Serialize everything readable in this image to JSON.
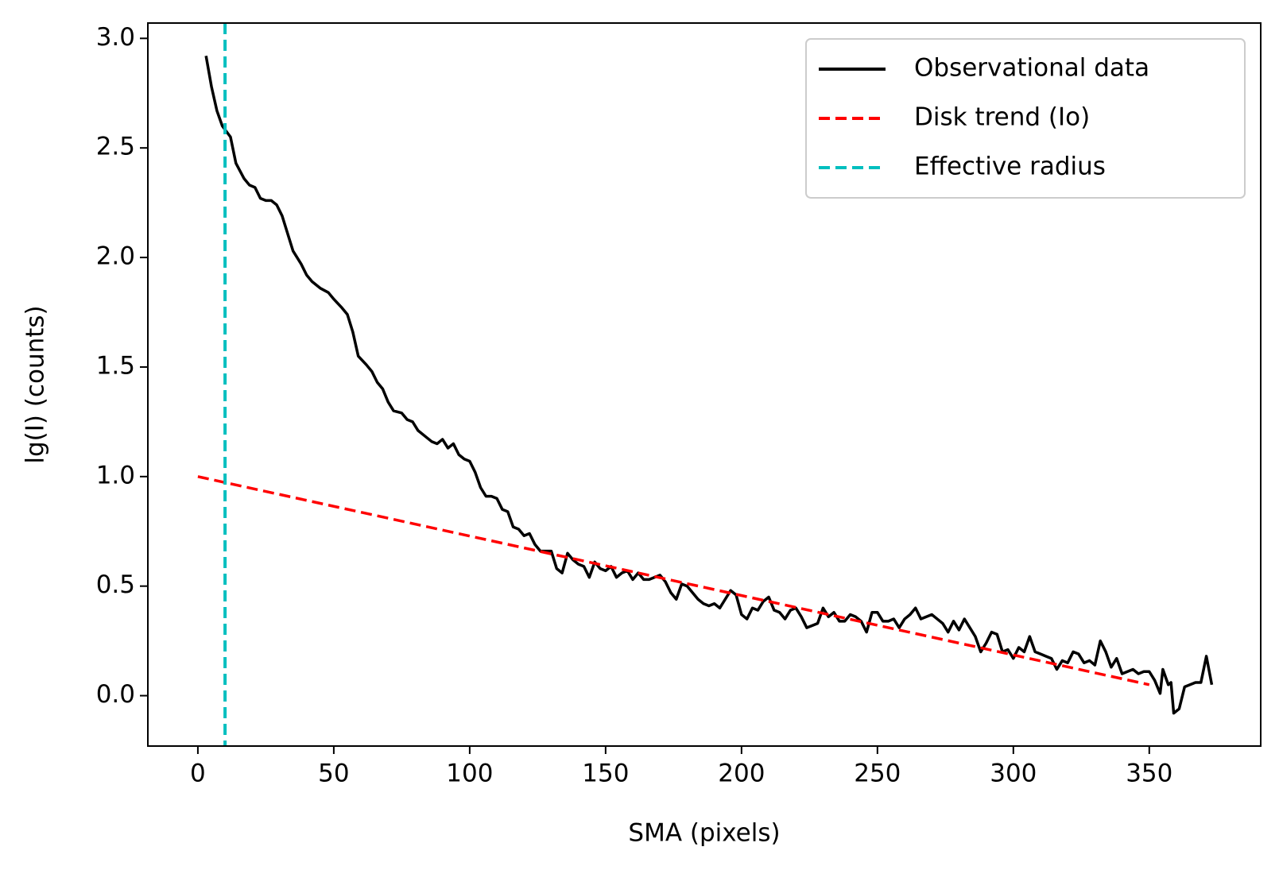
{
  "chart_data": {
    "type": "line",
    "xlabel": "SMA (pixels)",
    "ylabel": "lg(I) (counts)",
    "xlim": [
      -18.4,
      391
    ],
    "ylim": [
      -0.23,
      3.07
    ],
    "xticks": [
      0,
      50,
      100,
      150,
      200,
      250,
      300,
      350
    ],
    "yticks": [
      {
        "value": 0,
        "label": "0.0"
      },
      {
        "value": 0.5,
        "label": "0.5"
      },
      {
        "value": 1,
        "label": "1.0"
      },
      {
        "value": 1.5,
        "label": "1.5"
      },
      {
        "value": 2,
        "label": "2.0"
      },
      {
        "value": 2.5,
        "label": "2.5"
      },
      {
        "value": 3,
        "label": "3.0"
      }
    ],
    "legend": "upper right",
    "series": [
      {
        "name": "Observational data",
        "color": "#000000",
        "style": "solid",
        "x": [
          3,
          5,
          7,
          9,
          12,
          14,
          17,
          19,
          21,
          23,
          25,
          27,
          29,
          31,
          33,
          35,
          38,
          40,
          42,
          45,
          48,
          50,
          53,
          55,
          57,
          59,
          62,
          64,
          66,
          68,
          70,
          72,
          75,
          77,
          79,
          81,
          84,
          86,
          88,
          90,
          92,
          94,
          96,
          98,
          100,
          102,
          104,
          106,
          108,
          110,
          112,
          114,
          116,
          118,
          120,
          122,
          124,
          126,
          128,
          130,
          132,
          134,
          136,
          138,
          140,
          142,
          144,
          146,
          148,
          150,
          152,
          154,
          156,
          158,
          160,
          162,
          164,
          166,
          168,
          170,
          172,
          174,
          176,
          178,
          180,
          182,
          184,
          186,
          188,
          190,
          192,
          194,
          196,
          198,
          200,
          202,
          204,
          206,
          208,
          210,
          212,
          214,
          216,
          218,
          220,
          222,
          224,
          226,
          228,
          230,
          232,
          234,
          236,
          238,
          240,
          242,
          244,
          246,
          248,
          250,
          252,
          254,
          256,
          258,
          260,
          262,
          264,
          266,
          268,
          270,
          272,
          274,
          276,
          278,
          280,
          282,
          284,
          286,
          288,
          290,
          292,
          294,
          296,
          298,
          300,
          302,
          304,
          306,
          308,
          310,
          312,
          314,
          316,
          318,
          320,
          322,
          324,
          326,
          328,
          330,
          332,
          334,
          336,
          338,
          340,
          342,
          344,
          346,
          348,
          350,
          352,
          354,
          355,
          357,
          358,
          359,
          361,
          363,
          365,
          367,
          369,
          371,
          373
        ],
        "values": [
          2.92,
          2.78,
          2.67,
          2.6,
          2.55,
          2.43,
          2.36,
          2.33,
          2.32,
          2.27,
          2.26,
          2.26,
          2.24,
          2.19,
          2.11,
          2.03,
          1.97,
          1.92,
          1.89,
          1.86,
          1.84,
          1.81,
          1.77,
          1.74,
          1.66,
          1.55,
          1.51,
          1.48,
          1.43,
          1.4,
          1.34,
          1.3,
          1.29,
          1.26,
          1.25,
          1.21,
          1.18,
          1.16,
          1.15,
          1.17,
          1.13,
          1.15,
          1.1,
          1.08,
          1.07,
          1.02,
          0.95,
          0.91,
          0.91,
          0.9,
          0.85,
          0.84,
          0.77,
          0.76,
          0.73,
          0.74,
          0.69,
          0.66,
          0.66,
          0.66,
          0.58,
          0.56,
          0.65,
          0.62,
          0.6,
          0.59,
          0.54,
          0.61,
          0.58,
          0.57,
          0.59,
          0.54,
          0.56,
          0.57,
          0.53,
          0.56,
          0.53,
          0.53,
          0.54,
          0.55,
          0.52,
          0.47,
          0.44,
          0.51,
          0.5,
          0.47,
          0.44,
          0.42,
          0.41,
          0.42,
          0.4,
          0.44,
          0.48,
          0.46,
          0.37,
          0.35,
          0.4,
          0.39,
          0.43,
          0.45,
          0.39,
          0.38,
          0.35,
          0.39,
          0.4,
          0.36,
          0.31,
          0.32,
          0.33,
          0.4,
          0.36,
          0.38,
          0.34,
          0.34,
          0.37,
          0.36,
          0.34,
          0.29,
          0.38,
          0.38,
          0.34,
          0.34,
          0.35,
          0.31,
          0.35,
          0.37,
          0.4,
          0.35,
          0.36,
          0.37,
          0.35,
          0.33,
          0.29,
          0.34,
          0.3,
          0.35,
          0.31,
          0.27,
          0.2,
          0.24,
          0.29,
          0.28,
          0.2,
          0.21,
          0.17,
          0.22,
          0.2,
          0.27,
          0.2,
          0.19,
          0.18,
          0.17,
          0.12,
          0.16,
          0.15,
          0.2,
          0.19,
          0.15,
          0.16,
          0.14,
          0.25,
          0.2,
          0.13,
          0.17,
          0.1,
          0.11,
          0.12,
          0.1,
          0.11,
          0.11,
          0.07,
          0.01,
          0.12,
          0.05,
          0.06,
          -0.08,
          -0.06,
          0.04,
          0.05,
          0.06,
          0.06,
          0.18,
          0.05
        ]
      },
      {
        "name": "Disk trend (Io)",
        "color": "#ff0000",
        "style": "dashed",
        "x": [
          0,
          350
        ],
        "values": [
          1.0,
          0.05
        ]
      },
      {
        "name": "Effective radius",
        "color": "#00bfbf",
        "style": "dashed",
        "vline": 10
      }
    ]
  }
}
